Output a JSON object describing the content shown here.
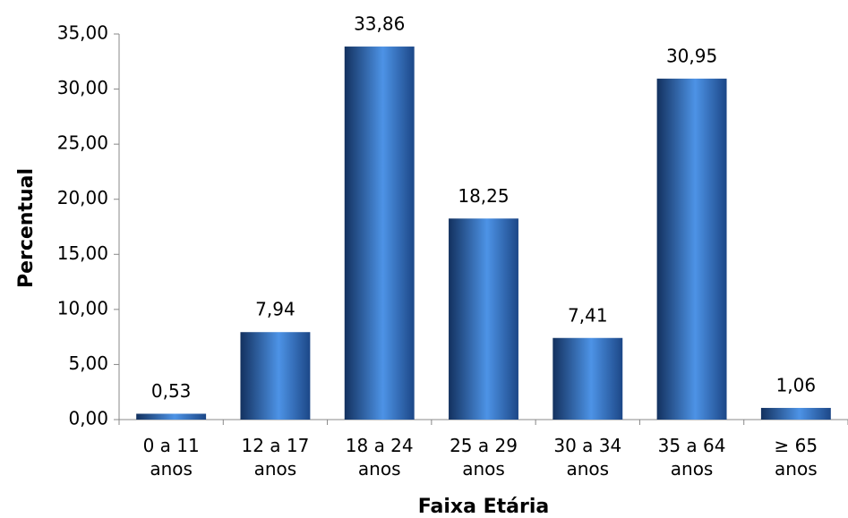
{
  "chart_data": {
    "type": "bar",
    "x_label": "Faixa Etária",
    "y_label": "Percentual",
    "categories": [
      "0 a 11 anos",
      "12 a 17 anos",
      "18 a 24 anos",
      "25 a 29 anos",
      "30 a 34 anos",
      "35 a 64 anos",
      "≥ 65 anos"
    ],
    "values": [
      0.53,
      7.94,
      33.86,
      18.25,
      7.41,
      30.95,
      1.06
    ],
    "value_labels": [
      "0,53",
      "7,94",
      "33,86",
      "18,25",
      "7,41",
      "30,95",
      "1,06"
    ],
    "color": "#3a78cc",
    "ylim": [
      0,
      35
    ],
    "yticks": [
      {
        "value": 0,
        "label": "0,00"
      },
      {
        "value": 5,
        "label": "5,00"
      },
      {
        "value": 10,
        "label": "10,00"
      },
      {
        "value": 15,
        "label": "15,00"
      },
      {
        "value": 20,
        "label": "20,00"
      },
      {
        "value": 25,
        "label": "25,00"
      },
      {
        "value": 30,
        "label": "30,00"
      },
      {
        "value": 35,
        "label": "35,00"
      }
    ]
  }
}
